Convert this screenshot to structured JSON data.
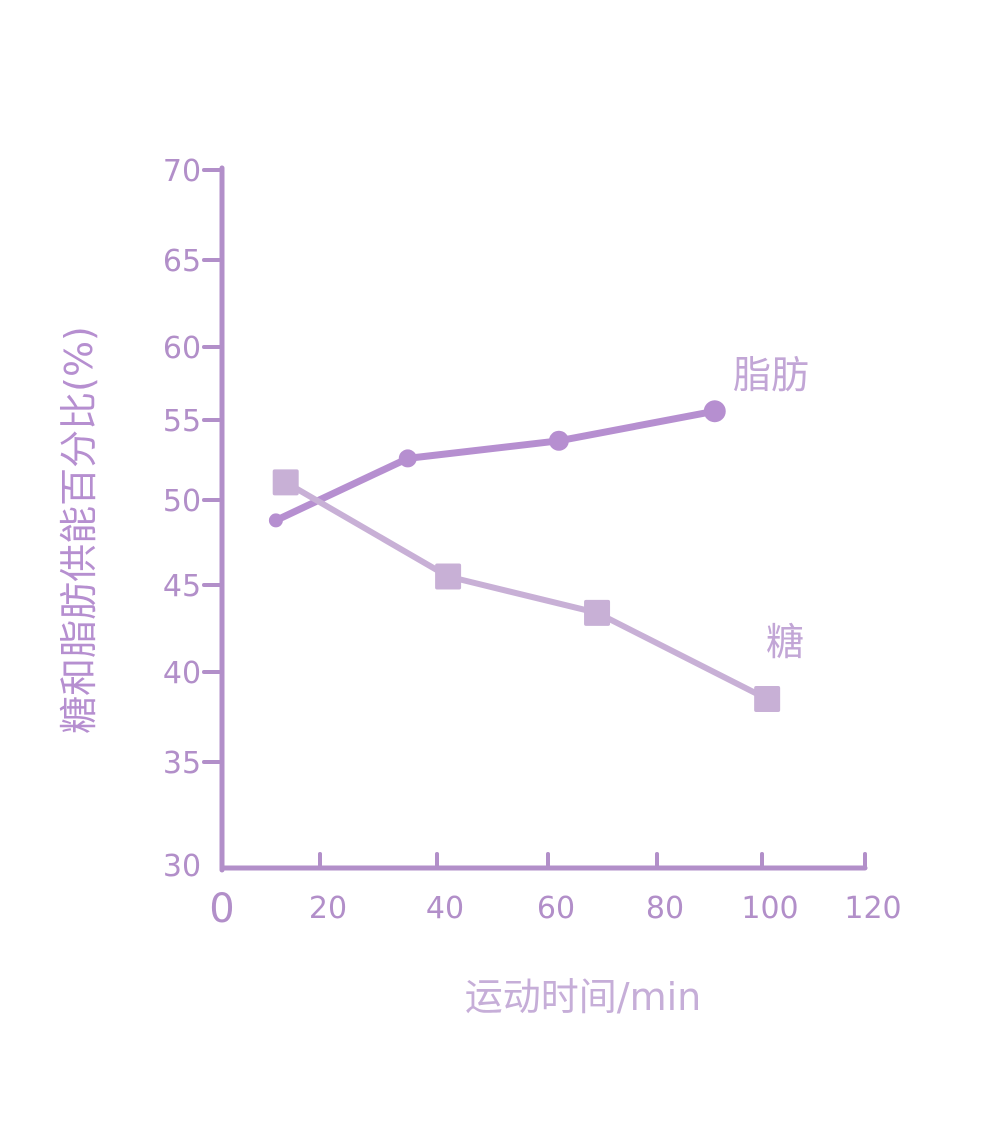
{
  "chart_data": {
    "type": "line",
    "title": "",
    "xlabel": "运动时间/min",
    "ylabel": "糖和脂肪供能百分比(%)",
    "xlim": [
      0,
      120
    ],
    "ylim": [
      30,
      70
    ],
    "x_ticks": [
      "0",
      "20",
      "40",
      "60",
      "80",
      "100",
      "120"
    ],
    "y_ticks": [
      "30",
      "35",
      "40",
      "45",
      "50",
      "55",
      "60",
      "65",
      "70"
    ],
    "grid": false,
    "series": [
      {
        "name": "脂肪",
        "marker": "circle",
        "color": "#b68fd0",
        "x": [
          11,
          35,
          62,
          91
        ],
        "y": [
          48.8,
          52.6,
          53.7,
          55.6
        ]
      },
      {
        "name": "糖",
        "marker": "square",
        "color": "#c8b0d6",
        "x": [
          13,
          42,
          69,
          101
        ],
        "y": [
          51.1,
          45.5,
          43.4,
          38.5
        ]
      }
    ],
    "axis_color": "#b28fc9"
  }
}
